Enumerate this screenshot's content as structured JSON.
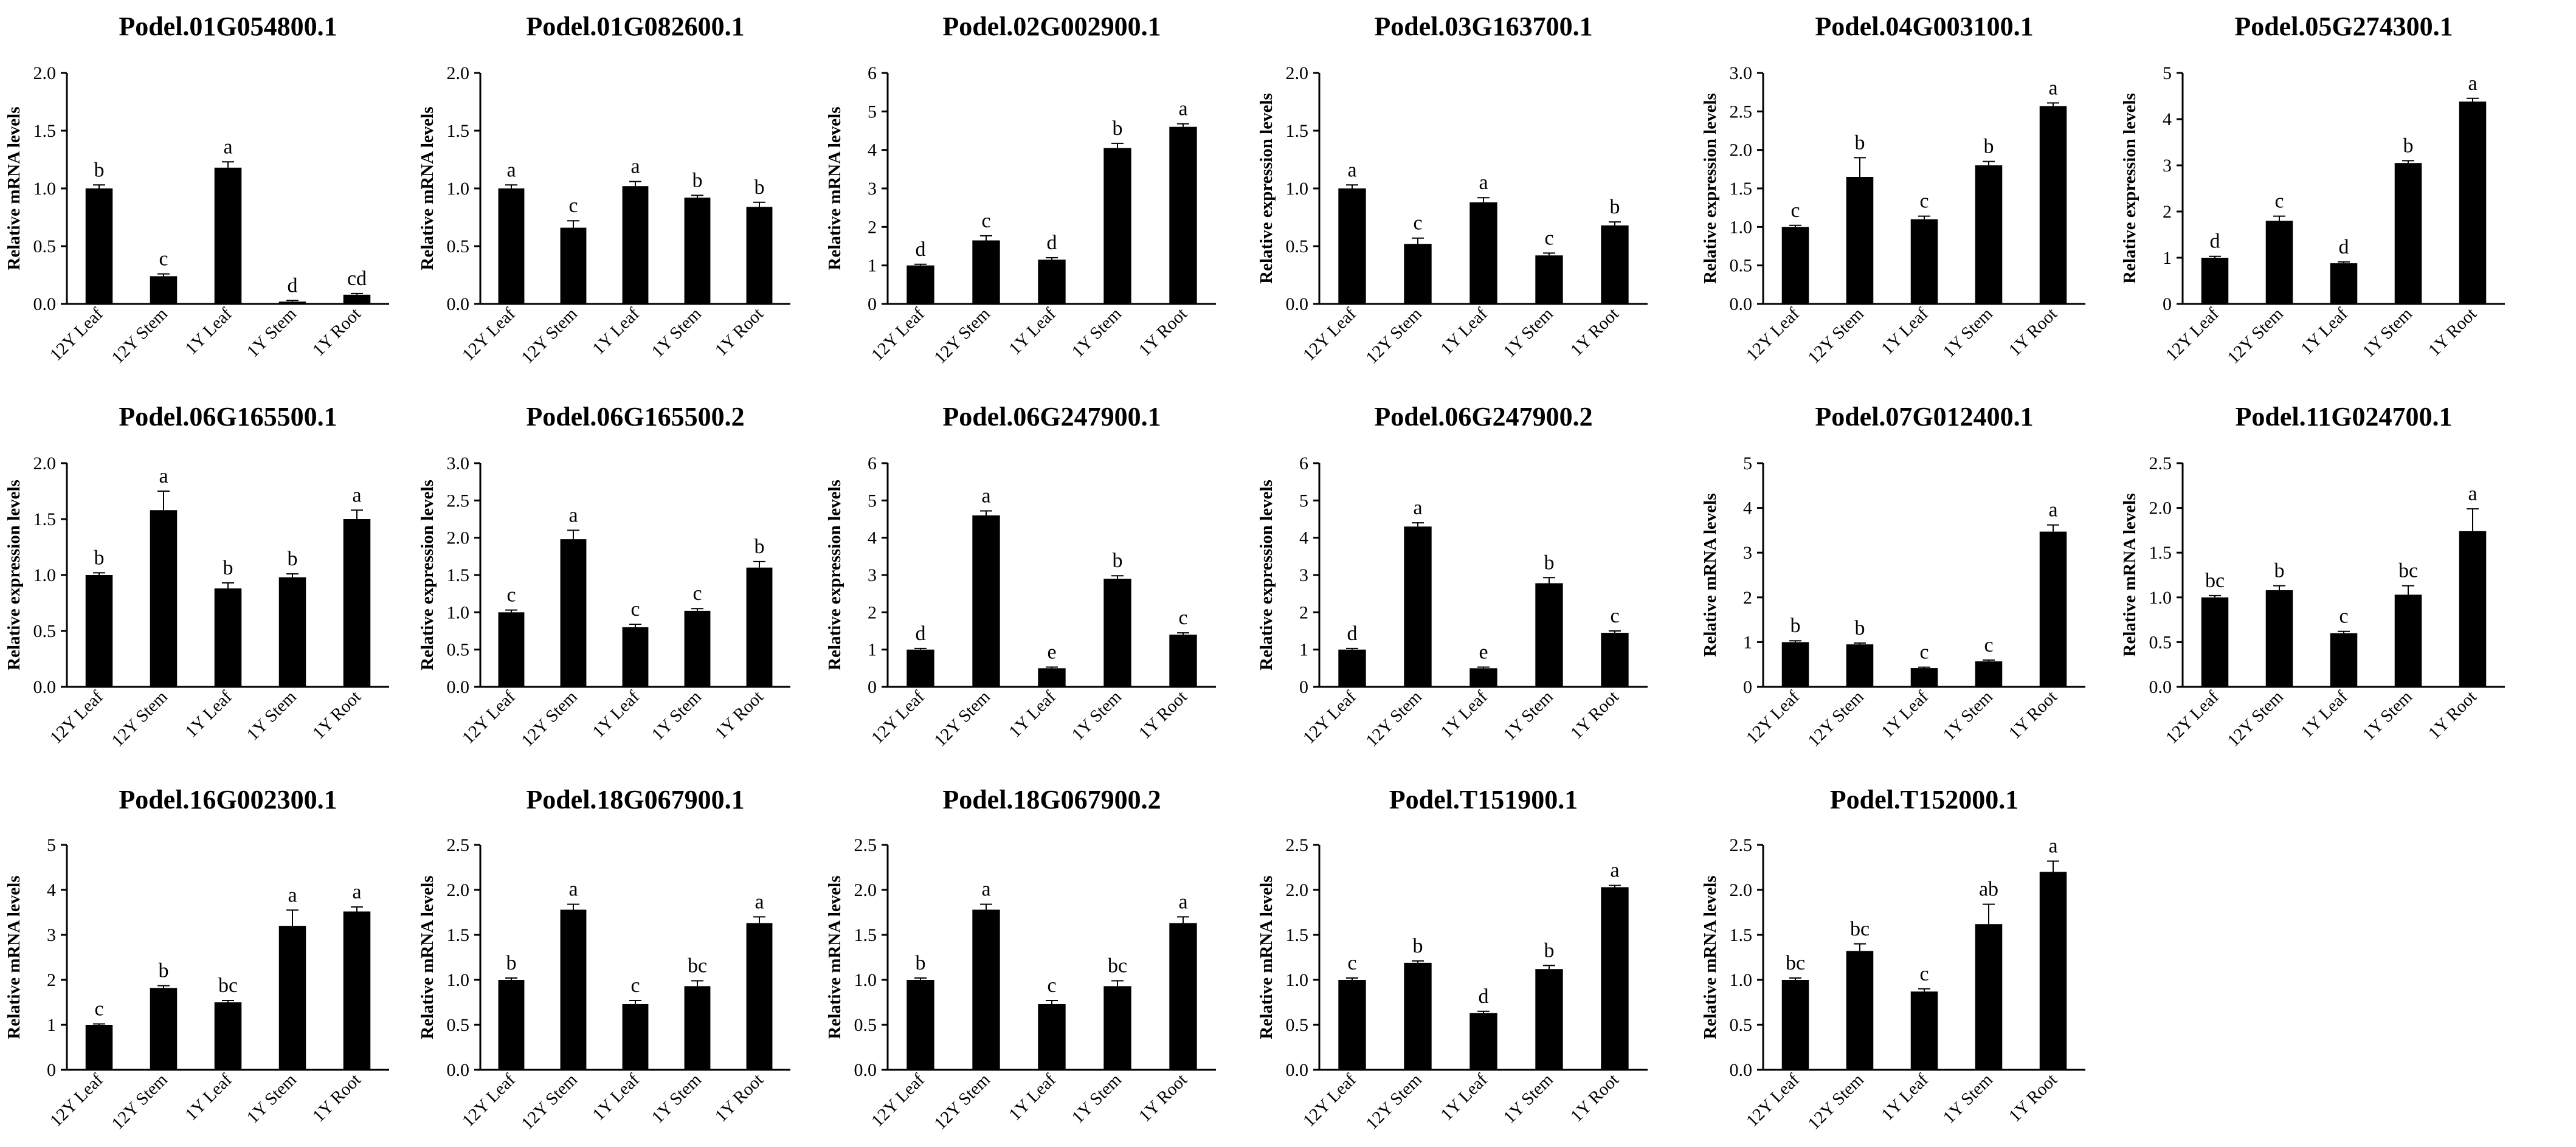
{
  "figure": {
    "description_none": ""
  },
  "chart_data": [
    {
      "type": "bar",
      "title": "Podel.01G054800.1",
      "ylabel": "Relative mRNA levels",
      "categories": [
        "12Y Leaf",
        "12Y Stem",
        "1Y Leaf",
        "1Y Stem",
        "1Y Root"
      ],
      "values": [
        1.0,
        0.24,
        1.18,
        0.02,
        0.08
      ],
      "errors": [
        0.03,
        0.02,
        0.05,
        0.01,
        0.01
      ],
      "labels": [
        "b",
        "c",
        "a",
        "d",
        "cd"
      ],
      "ylim": [
        0,
        2.0
      ],
      "yticks": [
        "0.0",
        "0.5",
        "1.0",
        "1.5",
        "2.0"
      ]
    },
    {
      "type": "bar",
      "title": "Podel.01G082600.1",
      "ylabel": "Relative mRNA levels",
      "categories": [
        "12Y Leaf",
        "12Y Stem",
        "1Y Leaf",
        "1Y Stem",
        "1Y Root"
      ],
      "values": [
        1.0,
        0.66,
        1.02,
        0.92,
        0.84
      ],
      "errors": [
        0.03,
        0.06,
        0.04,
        0.02,
        0.04
      ],
      "labels": [
        "a",
        "c",
        "a",
        "b",
        "b"
      ],
      "ylim": [
        0,
        2.0
      ],
      "yticks": [
        "0.0",
        "0.5",
        "1.0",
        "1.5",
        "2.0"
      ]
    },
    {
      "type": "bar",
      "title": "Podel.02G002900.1",
      "ylabel": "Relative mRNA levels",
      "categories": [
        "12Y Leaf",
        "12Y Stem",
        "1Y Leaf",
        "1Y Stem",
        "1Y Root"
      ],
      "values": [
        1.0,
        1.65,
        1.15,
        4.05,
        4.6
      ],
      "errors": [
        0.03,
        0.12,
        0.05,
        0.12,
        0.08
      ],
      "labels": [
        "d",
        "c",
        "d",
        "b",
        "a"
      ],
      "ylim": [
        0,
        6
      ],
      "yticks": [
        "0",
        "1",
        "2",
        "3",
        "4",
        "5",
        "6"
      ]
    },
    {
      "type": "bar",
      "title": "Podel.03G163700.1",
      "ylabel": "Relative expression levels",
      "categories": [
        "12Y Leaf",
        "12Y Stem",
        "1Y Leaf",
        "1Y Stem",
        "1Y Root"
      ],
      "values": [
        1.0,
        0.52,
        0.88,
        0.42,
        0.68
      ],
      "errors": [
        0.03,
        0.05,
        0.04,
        0.02,
        0.03
      ],
      "labels": [
        "a",
        "c",
        "a",
        "c",
        "b"
      ],
      "ylim": [
        0,
        2.0
      ],
      "yticks": [
        "0.0",
        "0.5",
        "1.0",
        "1.5",
        "2.0"
      ]
    },
    {
      "type": "bar",
      "title": "Podel.04G003100.1",
      "ylabel": "Relative expression levels",
      "categories": [
        "12Y Leaf",
        "12Y Stem",
        "1Y Leaf",
        "1Y Stem",
        "1Y Root"
      ],
      "values": [
        1.0,
        1.65,
        1.1,
        1.8,
        2.57
      ],
      "errors": [
        0.02,
        0.25,
        0.04,
        0.05,
        0.04
      ],
      "labels": [
        "c",
        "b",
        "c",
        "b",
        "a"
      ],
      "ylim": [
        0,
        3.0
      ],
      "yticks": [
        "0.0",
        "0.5",
        "1.0",
        "1.5",
        "2.0",
        "2.5",
        "3.0"
      ]
    },
    {
      "type": "bar",
      "title": "Podel.05G274300.1",
      "ylabel": "Relative expression levels",
      "categories": [
        "12Y Leaf",
        "12Y Stem",
        "1Y Leaf",
        "1Y Stem",
        "1Y Root"
      ],
      "values": [
        1.0,
        1.8,
        0.88,
        3.05,
        4.38
      ],
      "errors": [
        0.03,
        0.1,
        0.03,
        0.05,
        0.07
      ],
      "labels": [
        "d",
        "c",
        "d",
        "b",
        "a"
      ],
      "ylim": [
        0,
        5
      ],
      "yticks": [
        "0",
        "1",
        "2",
        "3",
        "4",
        "5"
      ]
    },
    {
      "type": "bar",
      "title": "Podel.06G165500.1",
      "ylabel": "Relative expression levels",
      "categories": [
        "12Y Leaf",
        "12Y Stem",
        "1Y Leaf",
        "1Y Stem",
        "1Y Root"
      ],
      "values": [
        1.0,
        1.58,
        0.88,
        0.98,
        1.5
      ],
      "errors": [
        0.02,
        0.17,
        0.05,
        0.03,
        0.08
      ],
      "labels": [
        "b",
        "a",
        "b",
        "b",
        "a"
      ],
      "ylim": [
        0,
        2.0
      ],
      "yticks": [
        "0.0",
        "0.5",
        "1.0",
        "1.5",
        "2.0"
      ]
    },
    {
      "type": "bar",
      "title": "Podel.06G165500.2",
      "ylabel": "Relative expression levels",
      "categories": [
        "12Y Leaf",
        "12Y Stem",
        "1Y Leaf",
        "1Y Stem",
        "1Y Root"
      ],
      "values": [
        1.0,
        1.98,
        0.8,
        1.02,
        1.6
      ],
      "errors": [
        0.03,
        0.12,
        0.04,
        0.03,
        0.08
      ],
      "labels": [
        "c",
        "a",
        "c",
        "c",
        "b"
      ],
      "ylim": [
        0,
        3.0
      ],
      "yticks": [
        "0.0",
        "0.5",
        "1.0",
        "1.5",
        "2.0",
        "2.5",
        "3.0"
      ]
    },
    {
      "type": "bar",
      "title": "Podel.06G247900.1",
      "ylabel": "Relative expression levels",
      "categories": [
        "12Y Leaf",
        "12Y Stem",
        "1Y Leaf",
        "1Y Stem",
        "1Y Root"
      ],
      "values": [
        1.0,
        4.6,
        0.5,
        2.9,
        1.4
      ],
      "errors": [
        0.03,
        0.12,
        0.03,
        0.08,
        0.05
      ],
      "labels": [
        "d",
        "a",
        "e",
        "b",
        "c"
      ],
      "ylim": [
        0,
        6
      ],
      "yticks": [
        "0",
        "1",
        "2",
        "3",
        "4",
        "5",
        "6"
      ]
    },
    {
      "type": "bar",
      "title": "Podel.06G247900.2",
      "ylabel": "Relative expression levels",
      "categories": [
        "12Y Leaf",
        "12Y Stem",
        "1Y Leaf",
        "1Y Stem",
        "1Y Root"
      ],
      "values": [
        1.0,
        4.3,
        0.5,
        2.78,
        1.45
      ],
      "errors": [
        0.03,
        0.1,
        0.03,
        0.15,
        0.05
      ],
      "labels": [
        "d",
        "a",
        "e",
        "b",
        "c"
      ],
      "ylim": [
        0,
        6
      ],
      "yticks": [
        "0",
        "1",
        "2",
        "3",
        "4",
        "5",
        "6"
      ]
    },
    {
      "type": "bar",
      "title": "Podel.07G012400.1",
      "ylabel": "Relative mRNA levels",
      "categories": [
        "12Y Leaf",
        "12Y Stem",
        "1Y Leaf",
        "1Y Stem",
        "1Y Root"
      ],
      "values": [
        1.0,
        0.95,
        0.42,
        0.57,
        3.47
      ],
      "errors": [
        0.03,
        0.03,
        0.02,
        0.03,
        0.15
      ],
      "labels": [
        "b",
        "b",
        "c",
        "c",
        "a"
      ],
      "ylim": [
        0,
        5
      ],
      "yticks": [
        "0",
        "1",
        "2",
        "3",
        "4",
        "5"
      ]
    },
    {
      "type": "bar",
      "title": "Podel.11G024700.1",
      "ylabel": "Relative mRNA levels",
      "categories": [
        "12Y Leaf",
        "12Y Stem",
        "1Y Leaf",
        "1Y Stem",
        "1Y Root"
      ],
      "values": [
        1.0,
        1.08,
        0.6,
        1.03,
        1.74
      ],
      "errors": [
        0.02,
        0.05,
        0.02,
        0.1,
        0.25
      ],
      "labels": [
        "bc",
        "b",
        "c",
        "bc",
        "a"
      ],
      "ylim": [
        0,
        2.5
      ],
      "yticks": [
        "0.0",
        "0.5",
        "1.0",
        "1.5",
        "2.0",
        "2.5"
      ]
    },
    {
      "type": "bar",
      "title": "Podel.16G002300.1",
      "ylabel": "Relative mRNA levels",
      "categories": [
        "12Y Leaf",
        "12Y Stem",
        "1Y Leaf",
        "1Y Stem",
        "1Y Root"
      ],
      "values": [
        1.0,
        1.82,
        1.5,
        3.2,
        3.52
      ],
      "errors": [
        0.02,
        0.05,
        0.04,
        0.35,
        0.1
      ],
      "labels": [
        "c",
        "b",
        "bc",
        "a",
        "a"
      ],
      "ylim": [
        0,
        5
      ],
      "yticks": [
        "0",
        "1",
        "2",
        "3",
        "4",
        "5"
      ]
    },
    {
      "type": "bar",
      "title": "Podel.18G067900.1",
      "ylabel": "Relative mRNA levels",
      "categories": [
        "12Y Leaf",
        "12Y Stem",
        "1Y Leaf",
        "1Y Stem",
        "1Y Root"
      ],
      "values": [
        1.0,
        1.78,
        0.73,
        0.93,
        1.63
      ],
      "errors": [
        0.02,
        0.06,
        0.04,
        0.06,
        0.07
      ],
      "labels": [
        "b",
        "a",
        "c",
        "bc",
        "a"
      ],
      "ylim": [
        0,
        2.5
      ],
      "yticks": [
        "0.0",
        "0.5",
        "1.0",
        "1.5",
        "2.0",
        "2.5"
      ]
    },
    {
      "type": "bar",
      "title": "Podel.18G067900.2",
      "ylabel": "Relative mRNA levels",
      "categories": [
        "12Y Leaf",
        "12Y Stem",
        "1Y Leaf",
        "1Y Stem",
        "1Y Root"
      ],
      "values": [
        1.0,
        1.78,
        0.73,
        0.93,
        1.63
      ],
      "errors": [
        0.02,
        0.06,
        0.04,
        0.06,
        0.07
      ],
      "labels": [
        "b",
        "a",
        "c",
        "bc",
        "a"
      ],
      "ylim": [
        0,
        2.5
      ],
      "yticks": [
        "0.0",
        "0.5",
        "1.0",
        "1.5",
        "2.0",
        "2.5"
      ]
    },
    {
      "type": "bar",
      "title": "Podel.T151900.1",
      "ylabel": "Relative mRNA levels",
      "categories": [
        "12Y Leaf",
        "12Y Stem",
        "1Y Leaf",
        "1Y Stem",
        "1Y Root"
      ],
      "values": [
        1.0,
        1.19,
        0.63,
        1.12,
        2.03
      ],
      "errors": [
        0.02,
        0.02,
        0.02,
        0.04,
        0.02
      ],
      "labels": [
        "c",
        "b",
        "d",
        "b",
        "a"
      ],
      "ylim": [
        0,
        2.5
      ],
      "yticks": [
        "0.0",
        "0.5",
        "1.0",
        "1.5",
        "2.0",
        "2.5"
      ]
    },
    {
      "type": "bar",
      "title": "Podel.T152000.1",
      "ylabel": "Relative mRNA levels",
      "categories": [
        "12Y Leaf",
        "12Y Stem",
        "1Y Leaf",
        "1Y Stem",
        "1Y Root"
      ],
      "values": [
        1.0,
        1.32,
        0.87,
        1.62,
        2.2
      ],
      "errors": [
        0.02,
        0.08,
        0.03,
        0.22,
        0.12
      ],
      "labels": [
        "bc",
        "bc",
        "c",
        "ab",
        "a"
      ],
      "ylim": [
        0,
        2.5
      ],
      "yticks": [
        "0.0",
        "0.5",
        "1.0",
        "1.5",
        "2.0",
        "2.5"
      ]
    }
  ]
}
